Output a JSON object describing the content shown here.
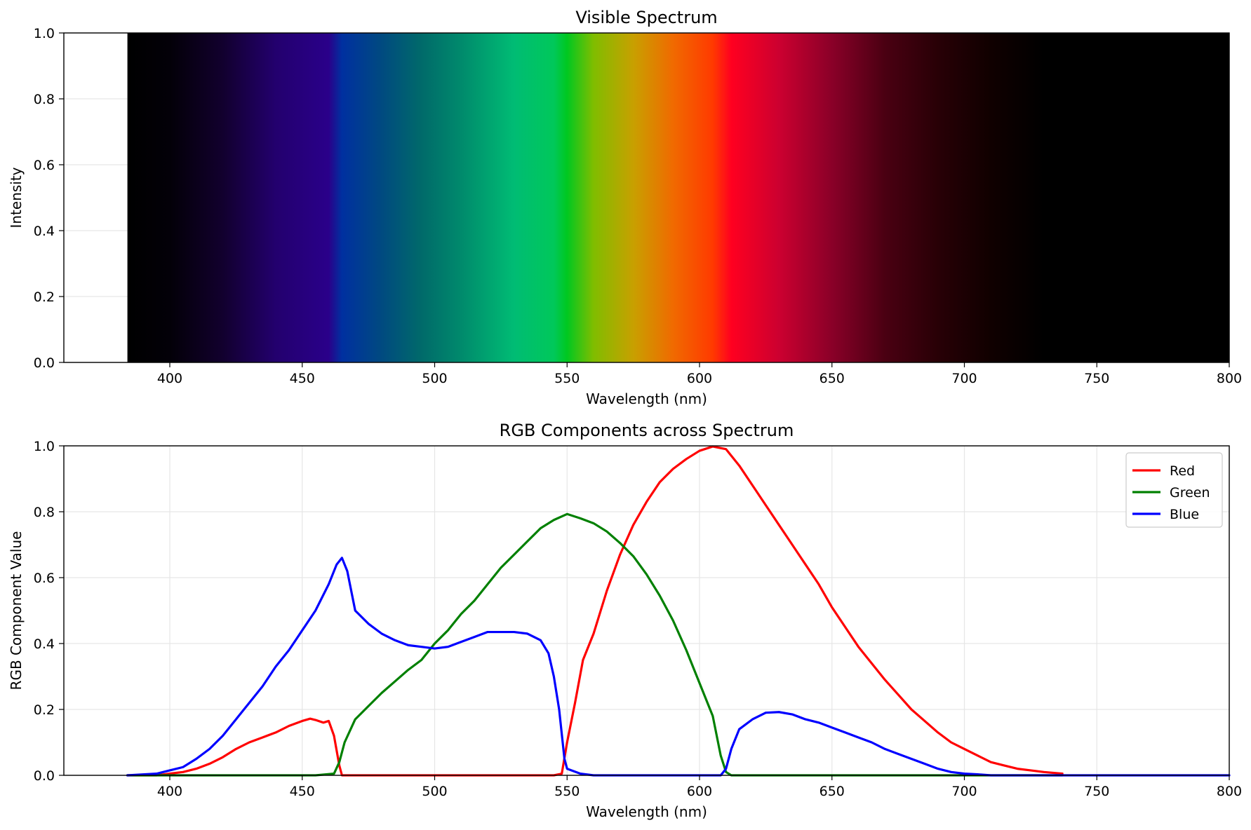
{
  "chart_data": [
    {
      "type": "heatmap",
      "title": "Visible Spectrum",
      "xlabel": "Wavelength (nm)",
      "ylabel": "Intensity",
      "xlim": [
        360,
        800
      ],
      "ylim": [
        0,
        1
      ],
      "x_ticks": [
        "400",
        "450",
        "500",
        "550",
        "600",
        "650",
        "700",
        "750",
        "800"
      ],
      "y_ticks": [
        "0.0",
        "0.2",
        "0.4",
        "0.6",
        "0.8",
        "1.0"
      ],
      "grid": true,
      "spectrum_range": [
        384,
        800
      ],
      "color_stops": [
        {
          "x": 384,
          "color": "#000000"
        },
        {
          "x": 400,
          "color": "#030008"
        },
        {
          "x": 420,
          "color": "#12002e"
        },
        {
          "x": 440,
          "color": "#23006e"
        },
        {
          "x": 460,
          "color": "#2a008a"
        },
        {
          "x": 465,
          "color": "#0030a0"
        },
        {
          "x": 480,
          "color": "#004a80"
        },
        {
          "x": 495,
          "color": "#006a6a"
        },
        {
          "x": 510,
          "color": "#008a6c"
        },
        {
          "x": 530,
          "color": "#00bc74"
        },
        {
          "x": 545,
          "color": "#00c85a"
        },
        {
          "x": 550,
          "color": "#00c820"
        },
        {
          "x": 560,
          "color": "#80bd00"
        },
        {
          "x": 575,
          "color": "#c8a000"
        },
        {
          "x": 590,
          "color": "#f06a00"
        },
        {
          "x": 605,
          "color": "#ff3a00"
        },
        {
          "x": 612,
          "color": "#ff0020"
        },
        {
          "x": 630,
          "color": "#cc0030"
        },
        {
          "x": 650,
          "color": "#8a0028"
        },
        {
          "x": 670,
          "color": "#4a0012"
        },
        {
          "x": 690,
          "color": "#280006"
        },
        {
          "x": 710,
          "color": "#100000"
        },
        {
          "x": 730,
          "color": "#000000"
        },
        {
          "x": 800,
          "color": "#000000"
        }
      ]
    },
    {
      "type": "line",
      "title": "RGB Components across Spectrum",
      "xlabel": "Wavelength (nm)",
      "ylabel": "RGB Component Value",
      "xlim": [
        360,
        800
      ],
      "ylim": [
        0,
        1
      ],
      "x_ticks": [
        "400",
        "450",
        "500",
        "550",
        "600",
        "650",
        "700",
        "750",
        "800"
      ],
      "y_ticks": [
        "0.0",
        "0.2",
        "0.4",
        "0.6",
        "0.8",
        "1.0"
      ],
      "grid": true,
      "legend_position": "top-right",
      "series": [
        {
          "name": "Red",
          "color": "#ff0000",
          "points": [
            [
              384,
              0
            ],
            [
              395,
              0
            ],
            [
              400,
              0.005
            ],
            [
              405,
              0.01
            ],
            [
              410,
              0.02
            ],
            [
              415,
              0.035
            ],
            [
              420,
              0.055
            ],
            [
              425,
              0.08
            ],
            [
              430,
              0.1
            ],
            [
              435,
              0.115
            ],
            [
              440,
              0.13
            ],
            [
              445,
              0.15
            ],
            [
              450,
              0.165
            ],
            [
              453,
              0.172
            ],
            [
              455,
              0.168
            ],
            [
              458,
              0.16
            ],
            [
              460,
              0.165
            ],
            [
              462,
              0.12
            ],
            [
              464,
              0.03
            ],
            [
              465,
              0
            ],
            [
              470,
              0
            ],
            [
              480,
              0
            ],
            [
              490,
              0
            ],
            [
              500,
              0
            ],
            [
              510,
              0
            ],
            [
              520,
              0
            ],
            [
              530,
              0
            ],
            [
              540,
              0
            ],
            [
              545,
              0
            ],
            [
              548,
              0.005
            ],
            [
              550,
              0.1
            ],
            [
              553,
              0.22
            ],
            [
              556,
              0.35
            ],
            [
              560,
              0.43
            ],
            [
              565,
              0.56
            ],
            [
              570,
              0.67
            ],
            [
              575,
              0.76
            ],
            [
              580,
              0.83
            ],
            [
              585,
              0.89
            ],
            [
              590,
              0.93
            ],
            [
              595,
              0.96
            ],
            [
              600,
              0.985
            ],
            [
              605,
              0.998
            ],
            [
              610,
              0.99
            ],
            [
              615,
              0.94
            ],
            [
              620,
              0.88
            ],
            [
              625,
              0.82
            ],
            [
              630,
              0.76
            ],
            [
              635,
              0.7
            ],
            [
              640,
              0.64
            ],
            [
              645,
              0.58
            ],
            [
              650,
              0.51
            ],
            [
              655,
              0.45
            ],
            [
              660,
              0.39
            ],
            [
              665,
              0.34
            ],
            [
              670,
              0.29
            ],
            [
              675,
              0.245
            ],
            [
              680,
              0.2
            ],
            [
              685,
              0.165
            ],
            [
              690,
              0.13
            ],
            [
              695,
              0.1
            ],
            [
              700,
              0.08
            ],
            [
              705,
              0.06
            ],
            [
              710,
              0.04
            ],
            [
              715,
              0.03
            ],
            [
              720,
              0.02
            ],
            [
              725,
              0.015
            ],
            [
              730,
              0.01
            ],
            [
              737,
              0.005
            ]
          ]
        },
        {
          "name": "Green",
          "color": "#008000",
          "points": [
            [
              384,
              0
            ],
            [
              400,
              0
            ],
            [
              420,
              0
            ],
            [
              440,
              0
            ],
            [
              455,
              0
            ],
            [
              462,
              0.005
            ],
            [
              464,
              0.04
            ],
            [
              466,
              0.1
            ],
            [
              470,
              0.17
            ],
            [
              475,
              0.21
            ],
            [
              480,
              0.25
            ],
            [
              485,
              0.285
            ],
            [
              490,
              0.32
            ],
            [
              495,
              0.35
            ],
            [
              500,
              0.4
            ],
            [
              505,
              0.44
            ],
            [
              510,
              0.49
            ],
            [
              515,
              0.53
            ],
            [
              520,
              0.58
            ],
            [
              525,
              0.63
            ],
            [
              530,
              0.67
            ],
            [
              535,
              0.71
            ],
            [
              540,
              0.75
            ],
            [
              545,
              0.775
            ],
            [
              550,
              0.793
            ],
            [
              555,
              0.78
            ],
            [
              560,
              0.765
            ],
            [
              565,
              0.74
            ],
            [
              570,
              0.705
            ],
            [
              575,
              0.665
            ],
            [
              580,
              0.61
            ],
            [
              585,
              0.545
            ],
            [
              590,
              0.47
            ],
            [
              595,
              0.38
            ],
            [
              600,
              0.28
            ],
            [
              605,
              0.18
            ],
            [
              608,
              0.06
            ],
            [
              610,
              0.01
            ],
            [
              612,
              0
            ],
            [
              620,
              0
            ],
            [
              650,
              0
            ],
            [
              700,
              0
            ],
            [
              737,
              0
            ]
          ]
        },
        {
          "name": "Blue",
          "color": "#0000ff",
          "points": [
            [
              384,
              0
            ],
            [
              395,
              0.005
            ],
            [
              400,
              0.015
            ],
            [
              405,
              0.025
            ],
            [
              410,
              0.05
            ],
            [
              415,
              0.08
            ],
            [
              420,
              0.12
            ],
            [
              425,
              0.17
            ],
            [
              430,
              0.22
            ],
            [
              435,
              0.27
            ],
            [
              440,
              0.33
            ],
            [
              445,
              0.38
            ],
            [
              450,
              0.44
            ],
            [
              455,
              0.5
            ],
            [
              460,
              0.58
            ],
            [
              463,
              0.64
            ],
            [
              465,
              0.66
            ],
            [
              467,
              0.62
            ],
            [
              470,
              0.5
            ],
            [
              475,
              0.46
            ],
            [
              480,
              0.43
            ],
            [
              485,
              0.41
            ],
            [
              490,
              0.395
            ],
            [
              495,
              0.39
            ],
            [
              500,
              0.385
            ],
            [
              505,
              0.39
            ],
            [
              510,
              0.405
            ],
            [
              515,
              0.42
            ],
            [
              520,
              0.435
            ],
            [
              525,
              0.435
            ],
            [
              530,
              0.435
            ],
            [
              535,
              0.43
            ],
            [
              540,
              0.41
            ],
            [
              543,
              0.37
            ],
            [
              545,
              0.3
            ],
            [
              547,
              0.2
            ],
            [
              549,
              0.05
            ],
            [
              550,
              0.02
            ],
            [
              555,
              0.005
            ],
            [
              560,
              0
            ],
            [
              580,
              0
            ],
            [
              600,
              0
            ],
            [
              608,
              0
            ],
            [
              610,
              0.02
            ],
            [
              612,
              0.08
            ],
            [
              615,
              0.14
            ],
            [
              620,
              0.17
            ],
            [
              625,
              0.19
            ],
            [
              630,
              0.192
            ],
            [
              635,
              0.185
            ],
            [
              640,
              0.17
            ],
            [
              645,
              0.16
            ],
            [
              650,
              0.145
            ],
            [
              655,
              0.13
            ],
            [
              660,
              0.115
            ],
            [
              665,
              0.1
            ],
            [
              670,
              0.08
            ],
            [
              675,
              0.065
            ],
            [
              680,
              0.05
            ],
            [
              685,
              0.035
            ],
            [
              690,
              0.02
            ],
            [
              695,
              0.01
            ],
            [
              700,
              0.005
            ],
            [
              705,
              0.003
            ],
            [
              710,
              0
            ],
            [
              740,
              0
            ],
            [
              800,
              0
            ]
          ]
        }
      ]
    }
  ]
}
